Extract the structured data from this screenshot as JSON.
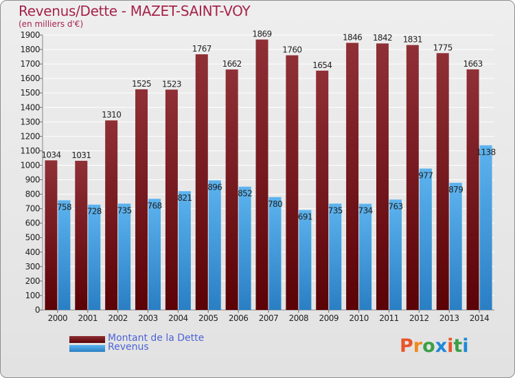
{
  "title": "Revenus/Dette - MAZET-SAINT-VOY",
  "subtitle": "(en milliers d'€)",
  "logo_text": "Proxiti",
  "colors": {
    "debt": "#7a1518",
    "revenue": "#3d9be0",
    "title": "#a5234b",
    "legend_text": "#4d63d8"
  },
  "chart_data": {
    "type": "bar",
    "categories": [
      "2000",
      "2001",
      "2002",
      "2003",
      "2004",
      "2005",
      "2006",
      "2007",
      "2008",
      "2009",
      "2010",
      "2011",
      "2012",
      "2013",
      "2014"
    ],
    "series": [
      {
        "name": "Montant de la Dette",
        "values": [
          1034,
          1031,
          1310,
          1525,
          1523,
          1767,
          1662,
          1869,
          1760,
          1654,
          1846,
          1842,
          1831,
          1775,
          1663
        ]
      },
      {
        "name": "Revenus",
        "values": [
          758,
          728,
          735,
          768,
          821,
          896,
          852,
          780,
          691,
          735,
          734,
          763,
          977,
          879,
          1138
        ]
      }
    ],
    "ylim": [
      0,
      1900
    ],
    "yticks": [
      0,
      100,
      200,
      300,
      400,
      500,
      600,
      700,
      800,
      900,
      1000,
      1100,
      1200,
      1300,
      1400,
      1500,
      1600,
      1700,
      1800,
      1900
    ],
    "grid": true,
    "legend_position": "bottom-left"
  }
}
